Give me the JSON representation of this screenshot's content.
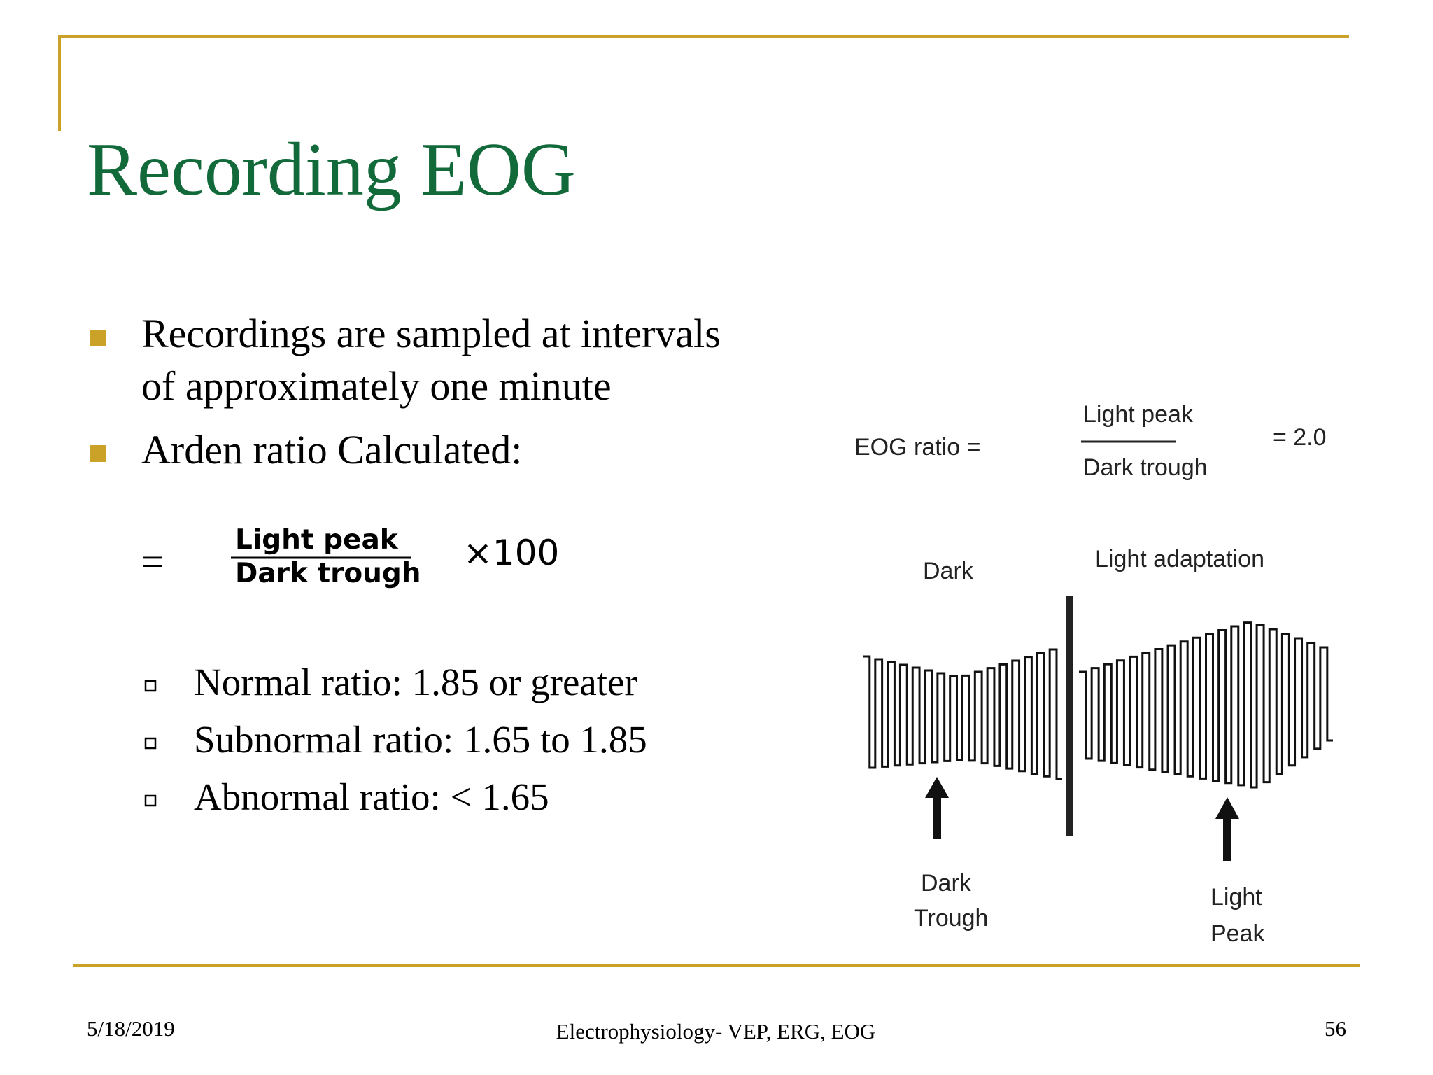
{
  "header": {
    "title": "Recording EOG"
  },
  "bullets": [
    [
      "Recordings are sampled at intervals",
      "of approximately one minute"
    ],
    [
      "Arden ratio Calculated:"
    ]
  ],
  "formula": {
    "equals": "=",
    "numerator": "Light peak",
    "denominator": "Dark trough",
    "multiplier": "×100"
  },
  "sub_bullets": [
    "Normal ratio: 1.85 or greater",
    "Subnormal ratio: 1.65 to 1.85",
    "Abnormal ratio: < 1.65"
  ],
  "figure": {
    "ratio_label": "EOG ratio =",
    "numerator": "Light peak",
    "denominator": "Dark trough",
    "result": "= 2.0",
    "dark": "Dark",
    "light_adaptation": "Light adaptation",
    "dark_trough": [
      "Dark",
      "Trough"
    ],
    "light_peak": [
      "Light",
      "Peak"
    ]
  },
  "footer": {
    "date": "5/18/2019",
    "title": "Electrophysiology- VEP, ERG, EOG",
    "page": "56"
  }
}
